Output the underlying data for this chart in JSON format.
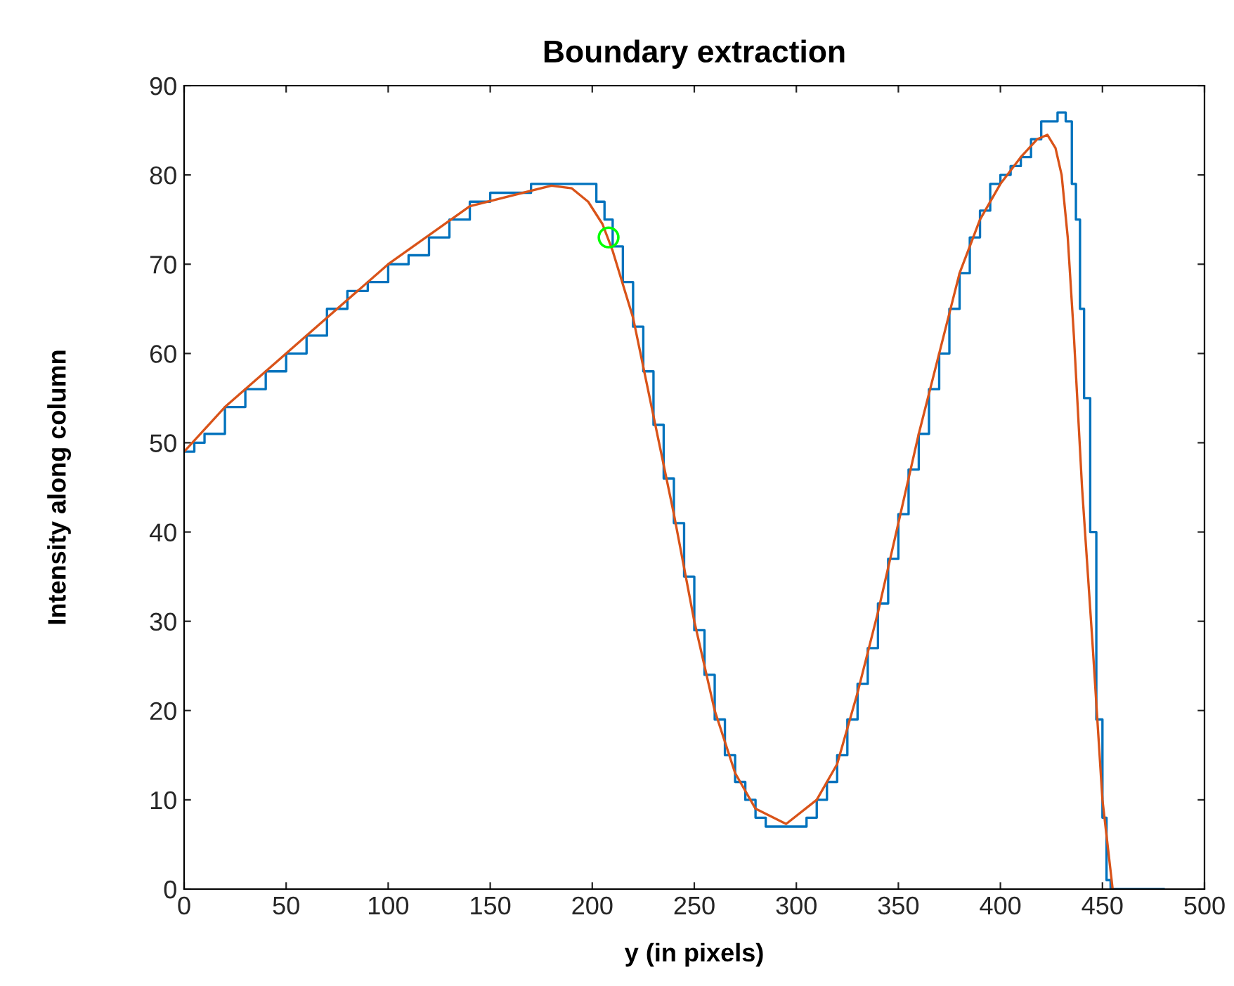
{
  "chart_data": {
    "type": "line",
    "title": "Boundary extraction",
    "xlabel": "y (in pixels)",
    "ylabel": "Intensity along column",
    "xlim": [
      0,
      500
    ],
    "ylim": [
      0,
      90
    ],
    "xticks": [
      0,
      50,
      100,
      150,
      200,
      250,
      300,
      350,
      400,
      450,
      500
    ],
    "yticks": [
      0,
      10,
      20,
      30,
      40,
      50,
      60,
      70,
      80,
      90
    ],
    "grid": false,
    "legend": false,
    "series": [
      {
        "type": "step",
        "color": "#0072bd",
        "x": [
          0,
          5,
          10,
          20,
          30,
          40,
          50,
          60,
          70,
          80,
          90,
          100,
          110,
          120,
          130,
          140,
          150,
          160,
          170,
          180,
          190,
          198,
          202,
          206,
          210,
          215,
          220,
          225,
          230,
          235,
          240,
          245,
          250,
          255,
          260,
          265,
          270,
          275,
          280,
          285,
          290,
          300,
          305,
          310,
          315,
          320,
          325,
          330,
          335,
          340,
          345,
          350,
          355,
          360,
          365,
          370,
          375,
          380,
          385,
          390,
          395,
          400,
          405,
          410,
          415,
          420,
          425,
          428,
          432,
          435,
          437,
          439,
          441,
          444,
          447,
          450,
          452,
          454,
          480
        ],
        "values": [
          49,
          50,
          51,
          54,
          56,
          58,
          60,
          62,
          65,
          67,
          68,
          70,
          71,
          73,
          75,
          77,
          78,
          78,
          79,
          79,
          79,
          79,
          77,
          75,
          72,
          68,
          63,
          58,
          52,
          46,
          41,
          35,
          29,
          24,
          19,
          15,
          12,
          10,
          8,
          7,
          7,
          7,
          8,
          10,
          12,
          15,
          19,
          23,
          27,
          32,
          37,
          42,
          47,
          51,
          56,
          60,
          65,
          69,
          73,
          76,
          79,
          80,
          81,
          82,
          84,
          86,
          86,
          87,
          86,
          79,
          75,
          65,
          55,
          40,
          19,
          8,
          1,
          0,
          0
        ]
      },
      {
        "color": "#d95319",
        "x": [
          0,
          20,
          50,
          100,
          140,
          180,
          190,
          198,
          205,
          210,
          220,
          230,
          240,
          250,
          260,
          270,
          280,
          295,
          310,
          320,
          330,
          340,
          350,
          360,
          370,
          380,
          390,
          400,
          410,
          418,
          423,
          427,
          430,
          433,
          436,
          440,
          445,
          450,
          455
        ],
        "values": [
          49,
          54,
          60,
          70,
          76.5,
          78.8,
          78.5,
          77,
          74.5,
          71.5,
          64,
          53,
          42,
          30,
          20,
          13,
          9,
          7.3,
          10,
          14,
          22,
          31,
          41,
          51,
          60,
          69,
          75,
          79,
          82,
          84,
          84.5,
          83,
          80,
          73,
          62,
          45,
          28,
          10,
          0
        ]
      },
      {
        "type": "scatter",
        "color": "#00ff00",
        "marker": "circle",
        "x": [
          208
        ],
        "values": [
          73
        ]
      }
    ]
  }
}
